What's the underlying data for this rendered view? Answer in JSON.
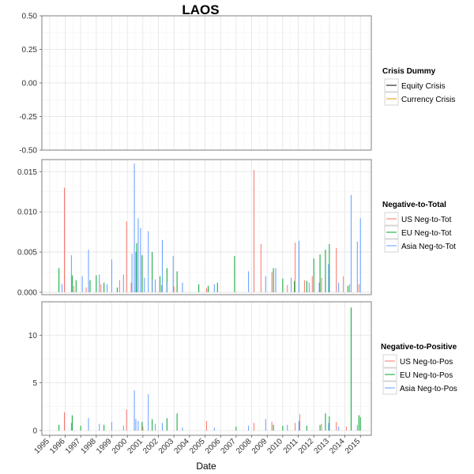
{
  "chart_data": {
    "type": "bar",
    "title": "LAOS",
    "xlabel": "Date",
    "x_ticks": [
      "1995",
      "1996",
      "1997",
      "1998",
      "1999",
      "2000",
      "2001",
      "2002",
      "2003",
      "2004",
      "2005",
      "2006",
      "2007",
      "2008",
      "2009",
      "2010",
      "2011",
      "2012",
      "2013",
      "2014",
      "2015"
    ],
    "x_range": [
      1994.5,
      2015.7
    ],
    "panels": [
      {
        "id": "crisis",
        "ylim": [
          -0.5,
          0.5
        ],
        "y_ticks": [
          "0.50",
          "0.25",
          "0.00",
          "-0.25",
          "-0.50"
        ],
        "y_tick_values": [
          0.5,
          0.25,
          0.0,
          -0.25,
          -0.5
        ],
        "legend_title": "Crisis Dummy",
        "series": [
          {
            "name": "Equity Crisis",
            "color": "#000000",
            "points": []
          },
          {
            "name": "Currency Crisis",
            "color": "#E69F00",
            "points": []
          }
        ]
      },
      {
        "id": "neg-to-total",
        "ylim": [
          -0.0003,
          0.0165
        ],
        "y_ticks": [
          "0.015",
          "0.010",
          "0.005",
          "0.000"
        ],
        "y_tick_values": [
          0.015,
          0.01,
          0.005,
          0.0
        ],
        "legend_title": "Negative-to-Total",
        "series": [
          {
            "name": "US Neg-to-Tot",
            "color": "#F8766D",
            "points": [
              [
                1995.95,
                0.013
              ],
              [
                1996.55,
                0.0008
              ],
              [
                1997.35,
                0.0006
              ],
              [
                1998.3,
                0.001
              ],
              [
                1999.5,
                0.0015
              ],
              [
                1999.95,
                0.0088
              ],
              [
                2000.25,
                0.0012
              ],
              [
                2002.2,
                0.0009
              ],
              [
                2003.0,
                0.0007
              ],
              [
                2005.1,
                0.0005
              ],
              [
                2008.15,
                0.0152
              ],
              [
                2008.6,
                0.006
              ],
              [
                2009.3,
                0.0025
              ],
              [
                2010.3,
                0.0009
              ],
              [
                2010.8,
                0.0062
              ],
              [
                2011.4,
                0.0015
              ],
              [
                2011.9,
                0.002
              ],
              [
                2012.5,
                0.0018
              ],
              [
                2013.0,
                0.002
              ],
              [
                2013.45,
                0.0055
              ],
              [
                2013.9,
                0.002
              ],
              [
                2014.3,
                0.001
              ],
              [
                2014.9,
                0.001
              ]
            ]
          },
          {
            "name": "EU Neg-to-Tot",
            "color": "#00A630",
            "points": [
              [
                1995.6,
                0.003
              ],
              [
                1996.45,
                0.0021
              ],
              [
                1996.7,
                0.0015
              ],
              [
                1997.6,
                0.0015
              ],
              [
                1998.0,
                0.0021
              ],
              [
                1998.5,
                0.0012
              ],
              [
                1999.35,
                0.0006
              ],
              [
                2000.6,
                0.0061
              ],
              [
                2000.95,
                0.0046
              ],
              [
                2001.6,
                0.005
              ],
              [
                2002.1,
                0.002
              ],
              [
                2002.55,
                0.003
              ],
              [
                2003.2,
                0.0026
              ],
              [
                2004.6,
                0.001
              ],
              [
                2005.2,
                0.0008
              ],
              [
                2005.8,
                0.0012
              ],
              [
                2006.9,
                0.0045
              ],
              [
                2009.4,
                0.003
              ],
              [
                2010.0,
                0.0017
              ],
              [
                2010.75,
                0.0014
              ],
              [
                2011.55,
                0.0014
              ],
              [
                2012.0,
                0.0042
              ],
              [
                2012.4,
                0.0047
              ],
              [
                2012.75,
                0.0053
              ],
              [
                2013.0,
                0.006
              ],
              [
                2014.2,
                0.0008
              ]
            ]
          },
          {
            "name": "Asia Neg-to-Tot",
            "color": "#619CFF",
            "points": [
              [
                1995.8,
                0.001
              ],
              [
                1996.4,
                0.0046
              ],
              [
                1997.1,
                0.002
              ],
              [
                1997.5,
                0.0053
              ],
              [
                1998.2,
                0.0022
              ],
              [
                1998.7,
                0.001
              ],
              [
                1999.0,
                0.0041
              ],
              [
                1999.75,
                0.0022
              ],
              [
                2000.3,
                0.0048
              ],
              [
                2000.45,
                0.016
              ],
              [
                2000.55,
                0.005
              ],
              [
                2000.7,
                0.0092
              ],
              [
                2000.85,
                0.008
              ],
              [
                2001.1,
                0.0018
              ],
              [
                2001.35,
                0.0076
              ],
              [
                2001.6,
                0.0015
              ],
              [
                2001.8,
                0.0016
              ],
              [
                2002.25,
                0.0065
              ],
              [
                2002.55,
                0.0012
              ],
              [
                2002.95,
                0.0045
              ],
              [
                2003.55,
                0.0012
              ],
              [
                2005.6,
                0.001
              ],
              [
                2007.8,
                0.0026
              ],
              [
                2008.9,
                0.002
              ],
              [
                2009.55,
                0.003
              ],
              [
                2010.55,
                0.0018
              ],
              [
                2011.05,
                0.0064
              ],
              [
                2011.7,
                0.0012
              ],
              [
                2012.35,
                0.0012
              ],
              [
                2012.95,
                0.0035
              ],
              [
                2013.6,
                0.0012
              ],
              [
                2014.4,
                0.0121
              ],
              [
                2014.8,
                0.0063
              ],
              [
                2015.0,
                0.0092
              ]
            ]
          }
        ]
      },
      {
        "id": "neg-to-pos",
        "ylim": [
          -0.5,
          13.5
        ],
        "y_ticks": [
          "10",
          "5",
          "0"
        ],
        "y_tick_values": [
          10,
          5,
          0
        ],
        "legend_title": "Negative-to-Positive",
        "series": [
          {
            "name": "US Neg-to-Pos",
            "color": "#F8766D",
            "points": [
              [
                1995.95,
                1.9
              ],
              [
                1999.95,
                2.2
              ],
              [
                2001.0,
                0.4
              ],
              [
                2005.1,
                1.0
              ],
              [
                2008.15,
                0.8
              ],
              [
                2009.3,
                0.9
              ],
              [
                2010.8,
                0.8
              ],
              [
                2011.1,
                1.7
              ],
              [
                2012.5,
                0.7
              ],
              [
                2013.45,
                0.9
              ],
              [
                2014.1,
                0.4
              ]
            ]
          },
          {
            "name": "EU Neg-to-Pos",
            "color": "#00A630",
            "points": [
              [
                1995.6,
                0.6
              ],
              [
                1996.45,
                1.6
              ],
              [
                1997.0,
                0.5
              ],
              [
                1998.5,
                0.6
              ],
              [
                2000.95,
                0.9
              ],
              [
                2001.6,
                1.2
              ],
              [
                2002.55,
                1.3
              ],
              [
                2003.2,
                1.8
              ],
              [
                2007.0,
                0.4
              ],
              [
                2009.4,
                0.6
              ],
              [
                2010.0,
                0.5
              ],
              [
                2011.55,
                0.5
              ],
              [
                2012.4,
                0.6
              ],
              [
                2012.75,
                1.8
              ],
              [
                2013.0,
                1.5
              ],
              [
                2014.4,
                12.9
              ],
              [
                2014.9,
                1.6
              ],
              [
                2015.0,
                1.4
              ]
            ]
          },
          {
            "name": "Asia Neg-to-Pos",
            "color": "#619CFF",
            "points": [
              [
                1996.4,
                0.8
              ],
              [
                1997.5,
                1.3
              ],
              [
                1998.2,
                0.7
              ],
              [
                1999.0,
                0.9
              ],
              [
                1999.75,
                0.5
              ],
              [
                2000.45,
                4.2
              ],
              [
                2000.55,
                1.2
              ],
              [
                2000.7,
                1.0
              ],
              [
                2001.35,
                3.8
              ],
              [
                2001.8,
                0.7
              ],
              [
                2002.25,
                0.8
              ],
              [
                2003.55,
                0.3
              ],
              [
                2005.6,
                0.3
              ],
              [
                2007.8,
                0.5
              ],
              [
                2008.9,
                1.2
              ],
              [
                2010.3,
                0.6
              ],
              [
                2011.05,
                1.0
              ],
              [
                2012.95,
                0.8
              ],
              [
                2013.6,
                0.4
              ],
              [
                2014.8,
                0.6
              ]
            ]
          }
        ]
      }
    ]
  }
}
